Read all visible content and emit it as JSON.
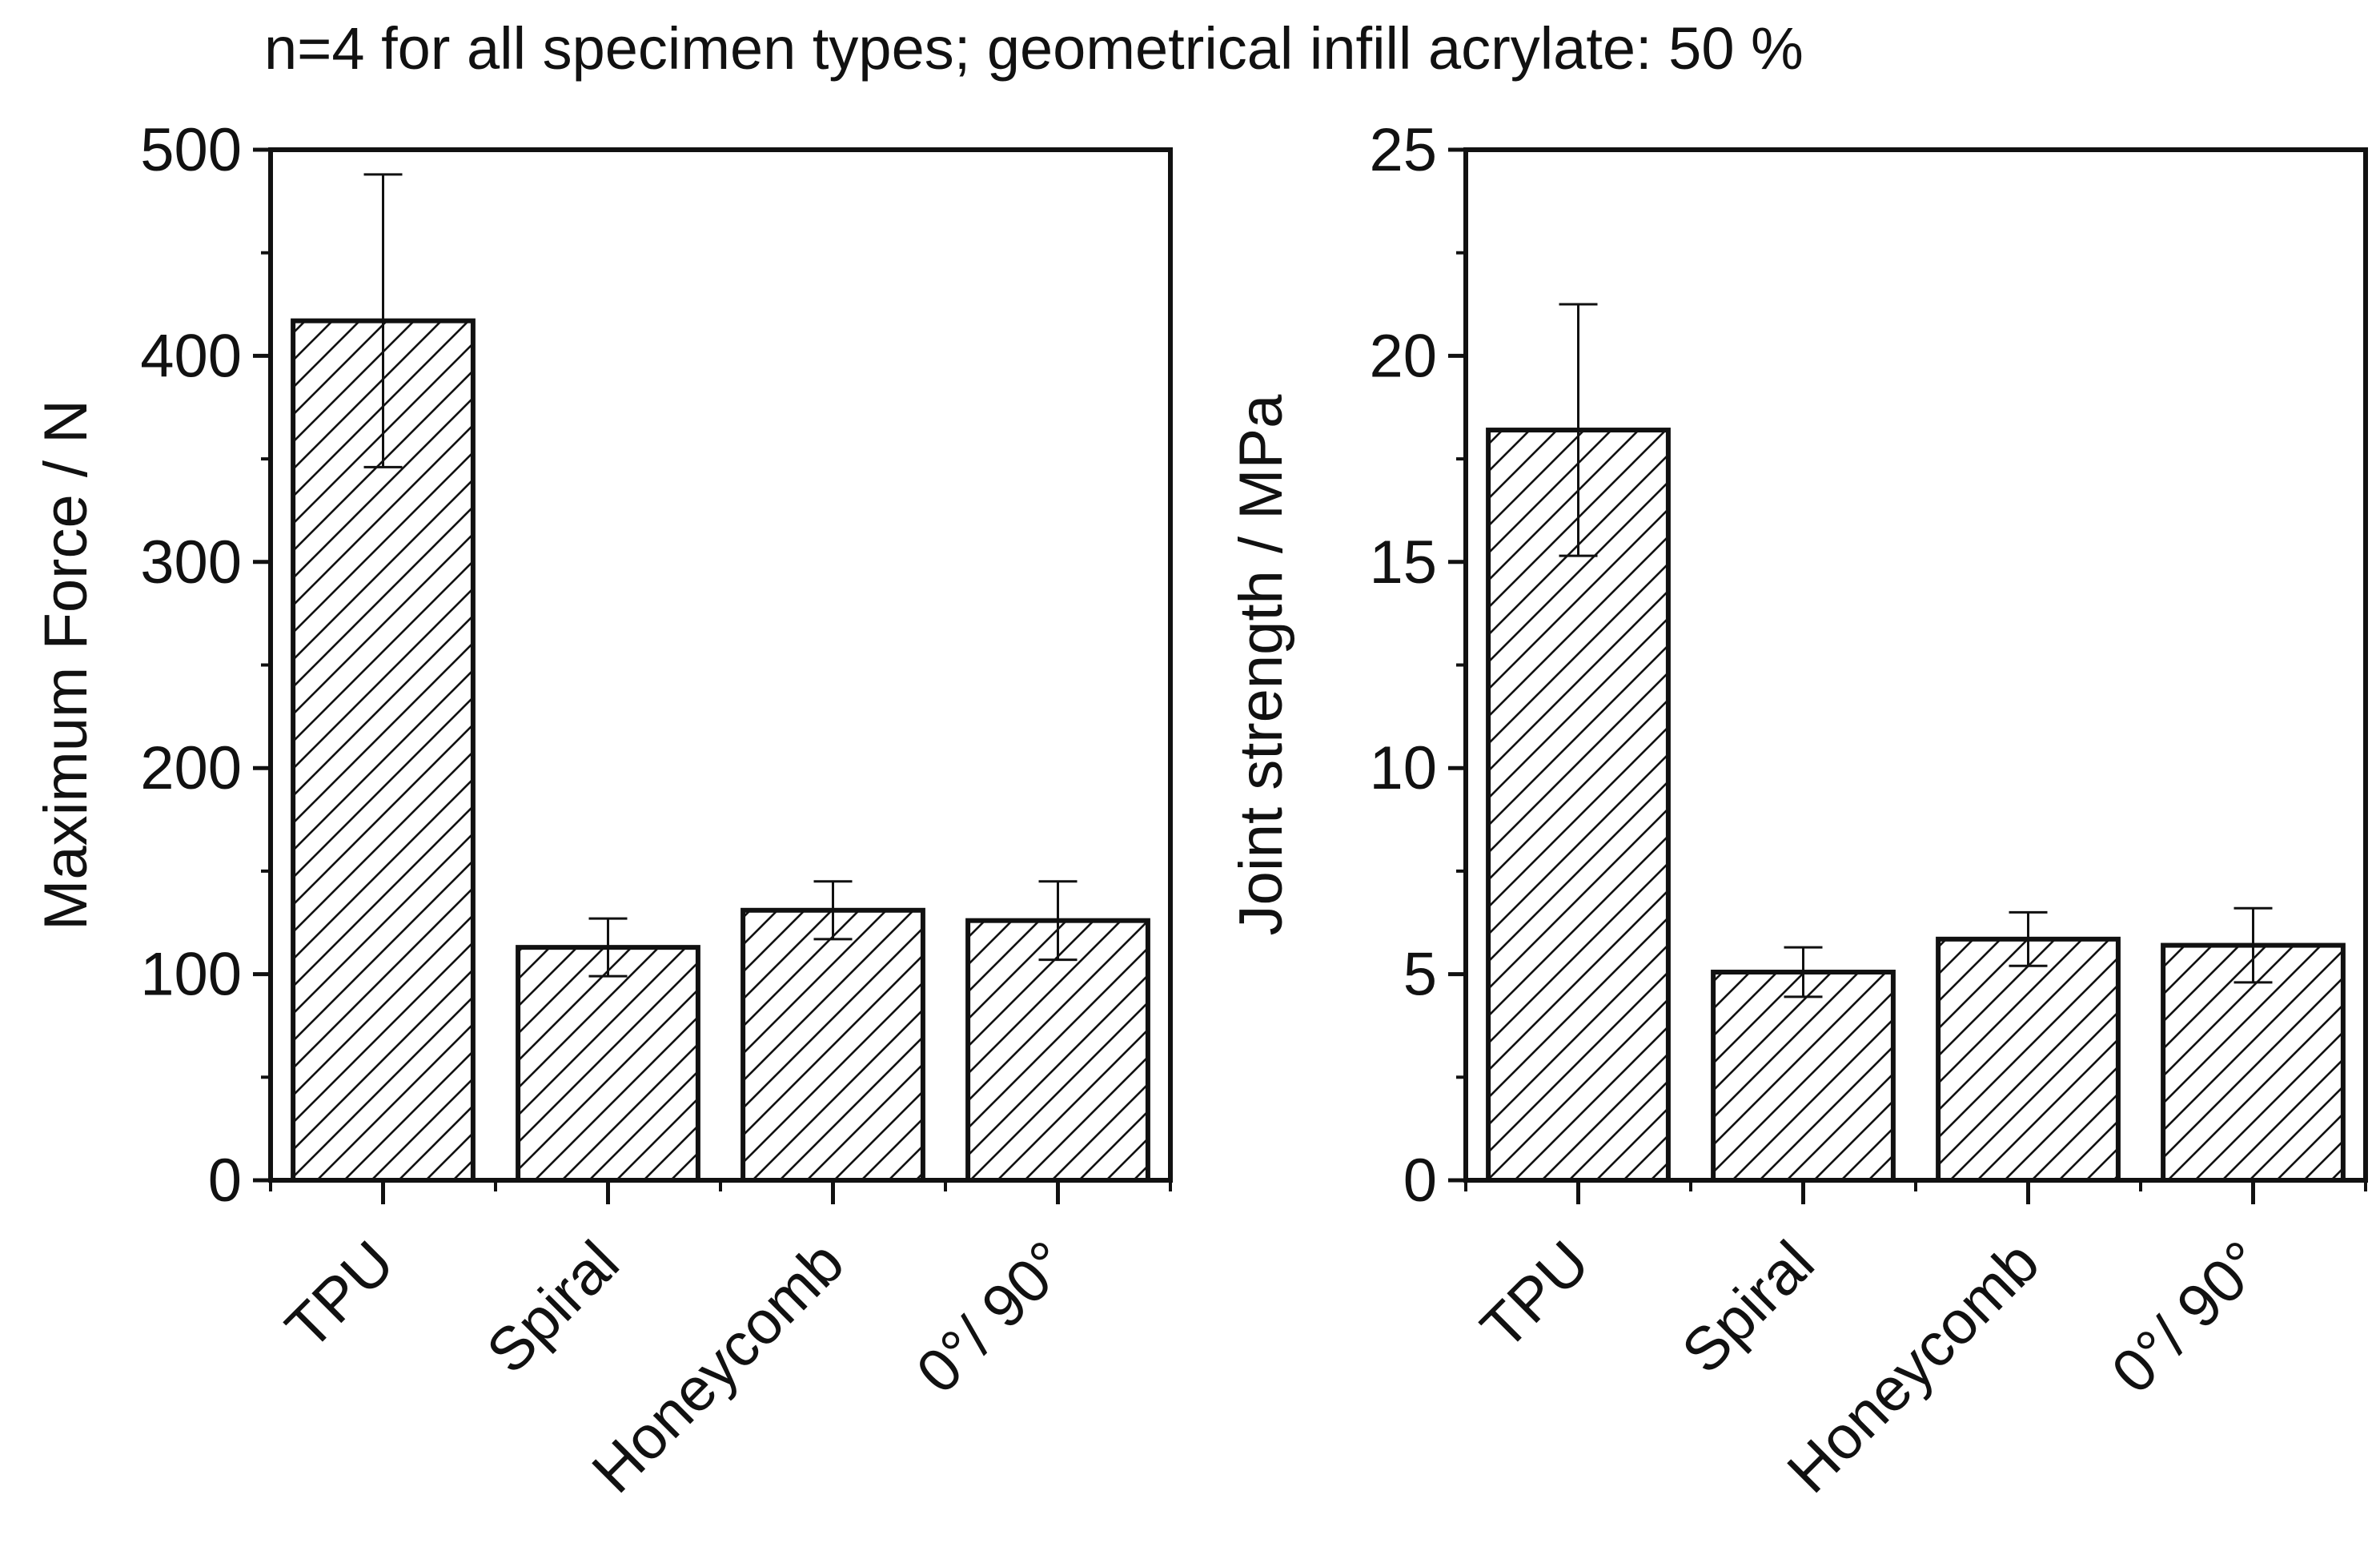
{
  "figure": {
    "caption": "n=4 for all specimen types; geometrical infill acrylate: 50 %"
  },
  "chart_data": [
    {
      "type": "bar",
      "categories": [
        "TPU",
        "Spiral",
        "Honeycomb",
        "0°/ 90°"
      ],
      "series": [
        {
          "values": [
            417,
            113,
            131,
            126
          ],
          "error": [
            71,
            14,
            14,
            19
          ]
        }
      ],
      "xlabel": "",
      "ylabel": "Maximum Force / N",
      "ylim": [
        0,
        500
      ],
      "yticks": [
        0,
        100,
        200,
        300,
        400,
        500
      ],
      "ytick_labels": [
        "0",
        "100",
        "200",
        "300",
        "400",
        "500"
      ],
      "fill": "hatched",
      "grid": false
    },
    {
      "type": "bar",
      "categories": [
        "TPU",
        "Spiral",
        "Honeycomb",
        "0°/ 90°"
      ],
      "series": [
        {
          "values": [
            18.2,
            5.05,
            5.85,
            5.7
          ],
          "error": [
            3.05,
            0.6,
            0.65,
            0.9
          ]
        }
      ],
      "xlabel": "",
      "ylabel": "Joint strength / MPa",
      "ylim": [
        0,
        25
      ],
      "yticks": [
        0,
        5,
        10,
        15,
        20,
        25
      ],
      "ytick_labels": [
        "0",
        "5",
        "10",
        "15",
        "20",
        "25"
      ],
      "fill": "hatched",
      "grid": false
    }
  ]
}
